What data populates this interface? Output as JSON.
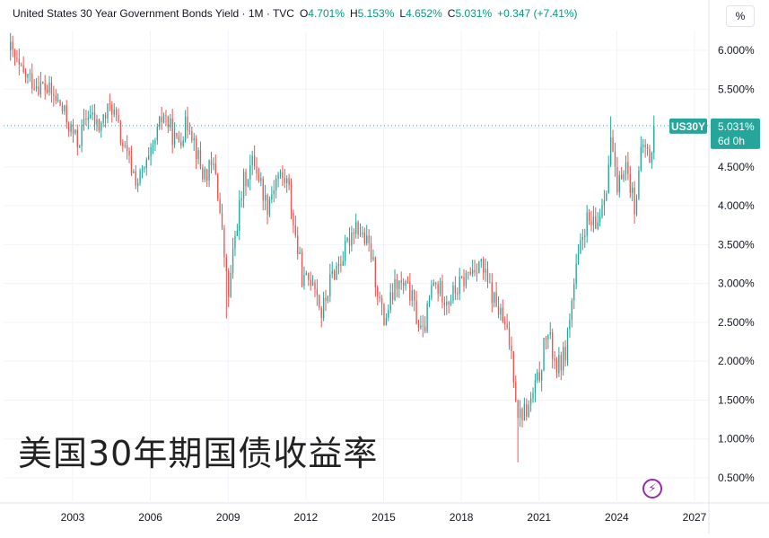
{
  "header": {
    "title": "United States 30 Year Government Bonds Yield · 1M · TVC",
    "open_label": "O",
    "open": "4.701%",
    "high_label": "H",
    "high": "5.153%",
    "low_label": "L",
    "low": "4.652%",
    "close_label": "C",
    "close": "5.031%",
    "change": "+0.347 (+7.41%)"
  },
  "unit_button": "%",
  "price_tag": {
    "symbol": "US30Y",
    "price": "5.031%",
    "countdown": "6d 0h"
  },
  "watermark": "美国30年期国债收益率",
  "colors": {
    "up": "#26a69a",
    "down": "#ef5350",
    "tag_bg": "#26a69a",
    "accent_icon": "#9c27b0"
  },
  "icons": {
    "lightning": "lightning-bolt-icon"
  },
  "chart_data": {
    "type": "candlestick",
    "title": "United States 30 Year Government Bonds Yield",
    "interval": "1M",
    "y_ticks": [
      "6.000%",
      "5.500%",
      "5.000%",
      "4.500%",
      "4.000%",
      "3.500%",
      "3.000%",
      "2.500%",
      "2.000%",
      "1.500%",
      "1.000%",
      "0.500%"
    ],
    "y_tick_values": [
      6.0,
      5.5,
      5.0,
      4.5,
      4.0,
      3.5,
      3.0,
      2.5,
      2.0,
      1.5,
      1.0,
      0.5
    ],
    "x_ticks": [
      "2003",
      "2006",
      "2009",
      "2012",
      "2015",
      "2018",
      "2021",
      "2024",
      "2027"
    ],
    "x_tick_years": [
      2003,
      2006,
      2009,
      2012,
      2015,
      2018,
      2021,
      2024,
      2027
    ],
    "ylim": [
      0.1,
      6.6
    ],
    "xlim": [
      2000.5,
      2027.5
    ],
    "current_price": 5.031,
    "grid": true,
    "anchors": [
      [
        2000.6,
        6.0
      ],
      [
        2001.0,
        5.7
      ],
      [
        2001.5,
        5.6
      ],
      [
        2002.0,
        5.5
      ],
      [
        2002.5,
        5.3
      ],
      [
        2002.9,
        5.0
      ],
      [
        2003.2,
        4.8
      ],
      [
        2003.6,
        5.2
      ],
      [
        2004.0,
        5.0
      ],
      [
        2004.5,
        5.3
      ],
      [
        2005.0,
        4.7
      ],
      [
        2005.5,
        4.3
      ],
      [
        2006.0,
        4.6
      ],
      [
        2006.5,
        5.2
      ],
      [
        2007.0,
        4.8
      ],
      [
        2007.5,
        5.1
      ],
      [
        2008.0,
        4.4
      ],
      [
        2008.5,
        4.5
      ],
      [
        2008.9,
        3.2
      ],
      [
        2009.0,
        2.8
      ],
      [
        2009.3,
        3.7
      ],
      [
        2009.6,
        4.3
      ],
      [
        2010.0,
        4.6
      ],
      [
        2010.5,
        4.0
      ],
      [
        2010.9,
        4.4
      ],
      [
        2011.3,
        4.3
      ],
      [
        2011.6,
        3.6
      ],
      [
        2011.9,
        3.0
      ],
      [
        2012.3,
        3.1
      ],
      [
        2012.6,
        2.6
      ],
      [
        2013.0,
        3.1
      ],
      [
        2013.5,
        3.4
      ],
      [
        2013.9,
        3.8
      ],
      [
        2014.5,
        3.4
      ],
      [
        2015.0,
        2.5
      ],
      [
        2015.5,
        3.0
      ],
      [
        2016.0,
        2.9
      ],
      [
        2016.5,
        2.3
      ],
      [
        2016.9,
        3.0
      ],
      [
        2017.5,
        2.8
      ],
      [
        2018.0,
        3.0
      ],
      [
        2018.7,
        3.3
      ],
      [
        2019.0,
        3.0
      ],
      [
        2019.5,
        2.6
      ],
      [
        2019.9,
        2.2
      ],
      [
        2020.2,
        1.3
      ],
      [
        2020.6,
        1.4
      ],
      [
        2021.0,
        1.8
      ],
      [
        2021.3,
        2.4
      ],
      [
        2021.7,
        1.9
      ],
      [
        2022.0,
        2.1
      ],
      [
        2022.4,
        3.1
      ],
      [
        2022.8,
        3.8
      ],
      [
        2023.2,
        3.7
      ],
      [
        2023.6,
        4.3
      ],
      [
        2023.8,
        4.9
      ],
      [
        2024.0,
        4.1
      ],
      [
        2024.3,
        4.6
      ],
      [
        2024.7,
        4.0
      ],
      [
        2025.0,
        4.8
      ],
      [
        2025.3,
        4.6
      ],
      [
        2025.45,
        4.7
      ]
    ],
    "spikes": [
      {
        "x": 2008.95,
        "low": 2.55
      },
      {
        "x": 2020.2,
        "low": 0.7
      },
      {
        "x": 2023.8,
        "high": 5.15
      }
    ]
  }
}
